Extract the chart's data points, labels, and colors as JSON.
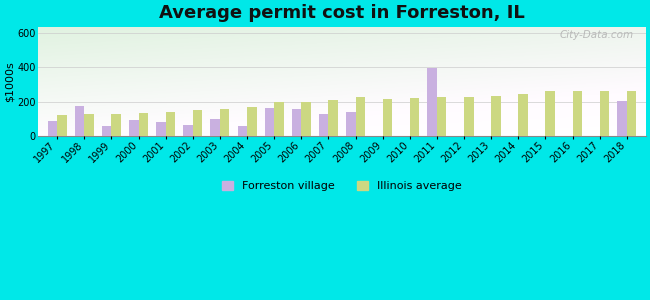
{
  "title": "Average permit cost in Forreston, IL",
  "ylabel": "$1000s",
  "years": [
    1997,
    1998,
    1999,
    2000,
    2001,
    2002,
    2003,
    2004,
    2005,
    2006,
    2007,
    2008,
    2009,
    2010,
    2011,
    2012,
    2013,
    2014,
    2015,
    2016,
    2017,
    2018
  ],
  "forreston": [
    85,
    175,
    60,
    95,
    80,
    65,
    100,
    55,
    165,
    155,
    125,
    140,
    null,
    null,
    395,
    null,
    null,
    null,
    null,
    null,
    null,
    205
  ],
  "illinois": [
    120,
    125,
    130,
    135,
    140,
    150,
    155,
    170,
    195,
    200,
    210,
    225,
    215,
    220,
    230,
    230,
    235,
    245,
    260,
    260,
    265,
    260
  ],
  "forreston_color": "#c9b0e0",
  "illinois_color": "#ccd882",
  "ylim": [
    0,
    640
  ],
  "yticks": [
    0,
    200,
    400,
    600
  ],
  "bar_width": 0.35,
  "fig_bg": "#00e8e8",
  "watermark": "City-Data.com",
  "legend_forreston": "Forreston village",
  "legend_illinois": "Illinois average",
  "grid_color": "#cccccc",
  "title_fontsize": 13,
  "axis_label_fontsize": 8,
  "tick_fontsize": 7
}
